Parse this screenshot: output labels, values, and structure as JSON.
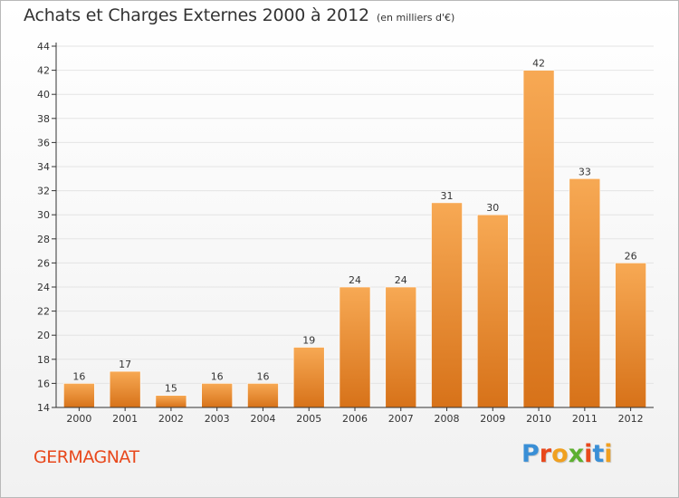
{
  "title": "Achats et Charges Externes 2000 à 2012",
  "unit_note": "(en milliers d'€)",
  "commune": "GERMAGNAT",
  "logo": {
    "text": "Proxiti",
    "letter_colors": [
      "#3a8fd6",
      "#e8481c",
      "#f0a020",
      "#5cb030",
      "#e8481c",
      "#3a8fd6",
      "#f0a020"
    ]
  },
  "colors": {
    "bar_top": "#f7a954",
    "bar_bottom": "#d77219",
    "axis": "#333333",
    "grid": "#e4e4e4"
  },
  "chart_data": {
    "type": "bar",
    "categories": [
      "2000",
      "2001",
      "2002",
      "2003",
      "2004",
      "2005",
      "2006",
      "2007",
      "2008",
      "2009",
      "2010",
      "2011",
      "2012"
    ],
    "values": [
      16,
      17,
      15,
      16,
      16,
      19,
      24,
      24,
      31,
      30,
      42,
      33,
      26
    ],
    "ylim": [
      14,
      44
    ],
    "yticks": [
      14,
      16,
      18,
      20,
      22,
      24,
      26,
      28,
      30,
      32,
      34,
      36,
      38,
      40,
      42,
      44
    ],
    "grid": true,
    "legend": "none"
  }
}
